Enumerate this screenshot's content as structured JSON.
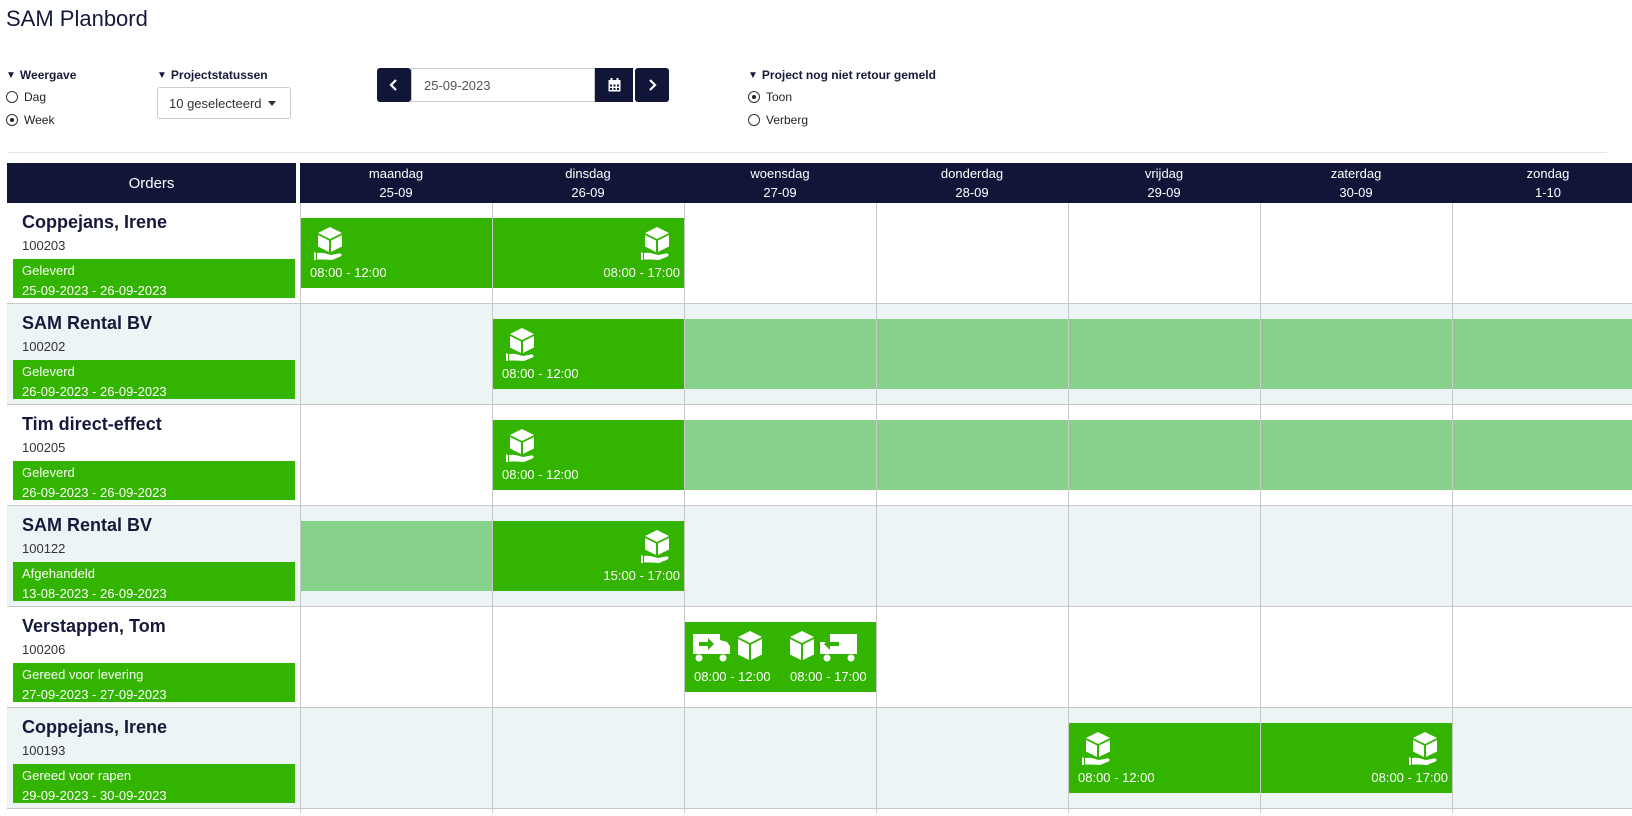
{
  "page_title": "SAM Planbord",
  "filters": {
    "weergave": {
      "label": "Weergave",
      "options": [
        "Dag",
        "Week"
      ],
      "selected": "Week"
    },
    "projectstatussen": {
      "label": "Projectstatussen",
      "value": "10 geselecteerd"
    },
    "date": {
      "value": "25-09-2023"
    },
    "retour": {
      "label": "Project nog niet retour gemeld",
      "options": [
        "Toon",
        "Verberg"
      ],
      "selected": "Toon"
    }
  },
  "header": {
    "orders_label": "Orders",
    "days": [
      {
        "name": "maandag",
        "date": "25-09"
      },
      {
        "name": "dinsdag",
        "date": "26-09"
      },
      {
        "name": "woensdag",
        "date": "27-09"
      },
      {
        "name": "donderdag",
        "date": "28-09"
      },
      {
        "name": "vrijdag",
        "date": "29-09"
      },
      {
        "name": "zaterdag",
        "date": "30-09"
      },
      {
        "name": "zondag",
        "date": "1-10"
      }
    ]
  },
  "orders": [
    {
      "name": "Coppejans, Irene",
      "number": "100203",
      "status": "Geleverd",
      "range": "25-09-2023 - 26-09-2023",
      "blocks": [
        {
          "day": 0,
          "span": 1,
          "type": "solid",
          "icons": [
            "hand-box"
          ],
          "times": [
            "08:00 - 12:00"
          ],
          "align": "left"
        },
        {
          "day": 1,
          "span": 1,
          "type": "solid",
          "icons": [
            "hand-box"
          ],
          "times": [
            "08:00 - 17:00"
          ],
          "align": "right"
        }
      ]
    },
    {
      "name": "SAM Rental BV",
      "number": "100202",
      "status": "Geleverd",
      "range": "26-09-2023 - 26-09-2023",
      "blocks": [
        {
          "day": 1,
          "span": 1,
          "type": "solid",
          "icons": [
            "hand-box"
          ],
          "times": [
            "08:00 - 12:00"
          ],
          "align": "left"
        },
        {
          "day": 2,
          "span": 5,
          "type": "light",
          "icons": [],
          "times": [],
          "align": "left"
        }
      ]
    },
    {
      "name": "Tim direct-effect",
      "number": "100205",
      "status": "Geleverd",
      "range": "26-09-2023 - 26-09-2023",
      "blocks": [
        {
          "day": 1,
          "span": 1,
          "type": "solid",
          "icons": [
            "hand-box"
          ],
          "times": [
            "08:00 - 12:00"
          ],
          "align": "left"
        },
        {
          "day": 2,
          "span": 5,
          "type": "light",
          "icons": [],
          "times": [],
          "align": "left"
        }
      ]
    },
    {
      "name": "SAM Rental BV",
      "number": "100122",
      "status": "Afgehandeld",
      "range": "13-08-2023 - 26-09-2023",
      "blocks": [
        {
          "day": 0,
          "span": 1,
          "type": "light",
          "icons": [],
          "times": [],
          "align": "left"
        },
        {
          "day": 1,
          "span": 1,
          "type": "solid",
          "icons": [
            "hand-box"
          ],
          "times": [
            "15:00 - 17:00"
          ],
          "align": "right"
        }
      ]
    },
    {
      "name": "Verstappen, Tom",
      "number": "100206",
      "status": "Gereed voor levering",
      "range": "27-09-2023 - 27-09-2023",
      "blocks": [
        {
          "day": 2,
          "span": 1,
          "type": "solid",
          "icons": [
            "truck-out",
            "box",
            "box",
            "truck-in"
          ],
          "times": [
            "08:00 - 12:00",
            "08:00 - 17:00"
          ],
          "align": "split"
        }
      ]
    },
    {
      "name": "Coppejans, Irene",
      "number": "100193",
      "status": "Gereed voor rapen",
      "range": "29-09-2023 - 30-09-2023",
      "blocks": [
        {
          "day": 4,
          "span": 1,
          "type": "solid",
          "icons": [
            "hand-box"
          ],
          "times": [
            "08:00 - 12:00"
          ],
          "align": "left"
        },
        {
          "day": 5,
          "span": 1,
          "type": "solid",
          "icons": [
            "hand-box"
          ],
          "times": [
            "08:00 - 17:00"
          ],
          "align": "right"
        }
      ]
    }
  ],
  "colors": {
    "navy": "#111638",
    "green": "#32b400",
    "light_green": "#86d28a",
    "alt_row": "#ecf4f6"
  }
}
